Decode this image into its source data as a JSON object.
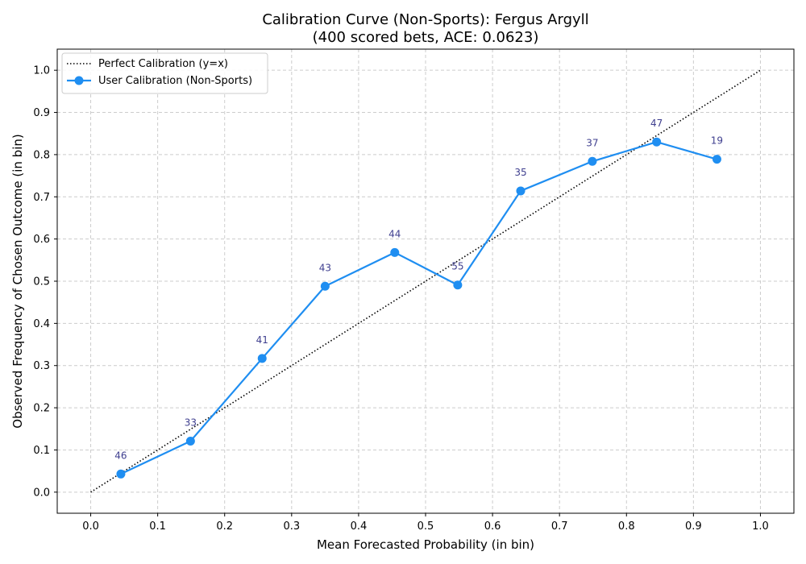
{
  "chart_data": {
    "type": "line",
    "title_line1": "Calibration Curve (Non-Sports): Fergus Argyll",
    "title_line2": "(400 scored bets, ACE: 0.0623)",
    "xlabel": "Mean Forecasted Probability (in bin)",
    "ylabel": "Observed Frequency of Chosen Outcome (in bin)",
    "xlim": [
      -0.05,
      1.05
    ],
    "ylim": [
      -0.05,
      1.05
    ],
    "xticks": [
      0.0,
      0.1,
      0.2,
      0.3,
      0.4,
      0.5,
      0.6,
      0.7,
      0.8,
      0.9,
      1.0
    ],
    "yticks": [
      0.0,
      0.1,
      0.2,
      0.3,
      0.4,
      0.5,
      0.6,
      0.7,
      0.8,
      0.9,
      1.0
    ],
    "xtick_labels": [
      "0.0",
      "0.1",
      "0.2",
      "0.3",
      "0.4",
      "0.5",
      "0.6",
      "0.7",
      "0.8",
      "0.9",
      "1.0"
    ],
    "ytick_labels": [
      "0.0",
      "0.1",
      "0.2",
      "0.3",
      "0.4",
      "0.5",
      "0.6",
      "0.7",
      "0.8",
      "0.9",
      "1.0"
    ],
    "grid": true,
    "legend_position": "top-left",
    "series": [
      {
        "name": "Perfect Calibration (y=x)",
        "style": "dotted",
        "color": "#000000",
        "x": [
          0.0,
          1.0
        ],
        "y": [
          0.0,
          1.0
        ]
      },
      {
        "name": "User Calibration (Non-Sports)",
        "style": "solid-markers",
        "color": "#1f8ef1",
        "x": [
          0.045,
          0.149,
          0.256,
          0.35,
          0.454,
          0.548,
          0.642,
          0.749,
          0.845,
          0.935
        ],
        "y": [
          0.043,
          0.121,
          0.317,
          0.488,
          0.568,
          0.491,
          0.714,
          0.784,
          0.83,
          0.789
        ],
        "counts": [
          "46",
          "33",
          "41",
          "43",
          "44",
          "55",
          "35",
          "37",
          "47",
          "19"
        ]
      }
    ],
    "count_label_color": "#3f3f8f"
  }
}
